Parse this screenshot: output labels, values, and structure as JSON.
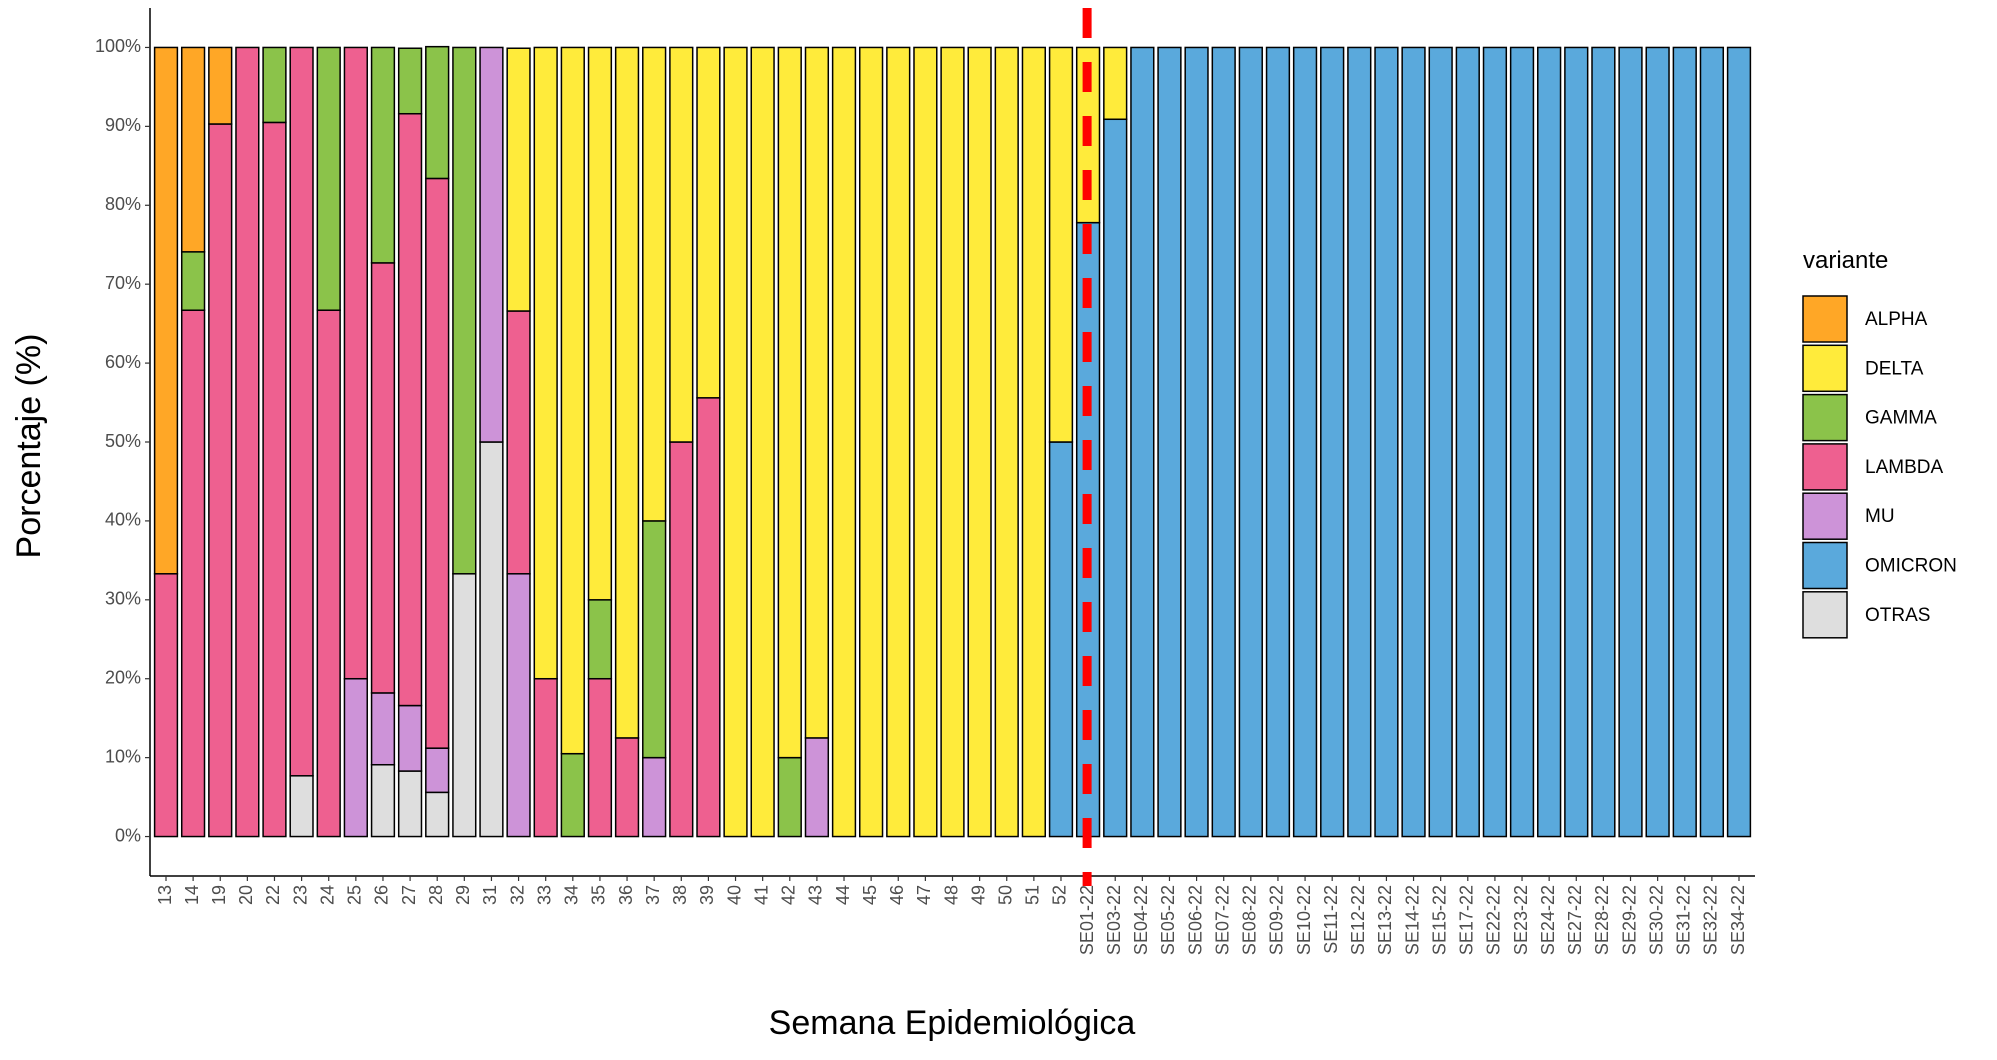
{
  "chart_data": {
    "type": "stacked_bar",
    "x_label": "Semana Epidemiológica",
    "y_label": "Porcentaje (%)",
    "legend_title": "variante",
    "legend_position": "right",
    "categories": [
      "13",
      "14",
      "19",
      "20",
      "22",
      "23",
      "24",
      "25",
      "26",
      "27",
      "28",
      "29",
      "31",
      "32",
      "33",
      "34",
      "35",
      "36",
      "37",
      "38",
      "39",
      "40",
      "41",
      "42",
      "43",
      "44",
      "45",
      "46",
      "47",
      "48",
      "49",
      "50",
      "51",
      "52",
      "SE01-22",
      "SE03-22",
      "SE04-22",
      "SE05-22",
      "SE06-22",
      "SE07-22",
      "SE08-22",
      "SE09-22",
      "SE10-22",
      "SE11-22",
      "SE12-22",
      "SE13-22",
      "SE14-22",
      "SE15-22",
      "SE17-22",
      "SE22-22",
      "SE23-22",
      "SE24-22",
      "SE27-22",
      "SE28-22",
      "SE29-22",
      "SE30-22",
      "SE31-22",
      "SE32-22",
      "SE34-22"
    ],
    "ylim": [
      -5,
      105
    ],
    "yticks": [
      {
        "value": 0,
        "label": "0%"
      },
      {
        "value": 10,
        "label": "10%"
      },
      {
        "value": 20,
        "label": "20%"
      },
      {
        "value": 30,
        "label": "30%"
      },
      {
        "value": 40,
        "label": "40%"
      },
      {
        "value": 50,
        "label": "50%"
      },
      {
        "value": 60,
        "label": "60%"
      },
      {
        "value": 70,
        "label": "70%"
      },
      {
        "value": 80,
        "label": "80%"
      },
      {
        "value": 90,
        "label": "90%"
      },
      {
        "value": 100,
        "label": "100%"
      }
    ],
    "series": [
      {
        "name": "OTRAS",
        "color": "#dedede",
        "values": [
          null,
          null,
          null,
          null,
          null,
          7.7,
          null,
          null,
          9.1,
          8.3,
          5.6,
          33.3,
          50,
          null,
          null,
          null,
          null,
          null,
          null,
          null,
          null,
          null,
          null,
          null,
          null,
          null,
          null,
          null,
          null,
          null,
          null,
          null,
          null,
          null,
          null,
          null,
          null,
          null,
          null,
          null,
          null,
          null,
          null,
          null,
          null,
          null,
          null,
          null,
          null,
          null,
          null,
          null,
          null,
          null,
          null,
          null,
          null,
          null,
          null
        ]
      },
      {
        "name": "OMICRON",
        "color": "#5aa9dc",
        "values": [
          null,
          null,
          null,
          null,
          null,
          null,
          null,
          null,
          null,
          null,
          null,
          null,
          null,
          null,
          null,
          null,
          null,
          null,
          null,
          null,
          null,
          null,
          null,
          null,
          null,
          null,
          null,
          null,
          null,
          null,
          null,
          null,
          null,
          50,
          77.8,
          90.9,
          100,
          100,
          100,
          100,
          100,
          100,
          100,
          100,
          100,
          100,
          100,
          100,
          100,
          100,
          100,
          100,
          100,
          100,
          100,
          100,
          100,
          100,
          100
        ]
      },
      {
        "name": "MU",
        "color": "#cd93d8",
        "values": [
          null,
          null,
          null,
          null,
          null,
          null,
          null,
          20,
          9.1,
          8.3,
          5.6,
          null,
          50,
          33.3,
          null,
          null,
          null,
          null,
          10,
          null,
          null,
          null,
          null,
          null,
          12.5,
          null,
          null,
          null,
          null,
          null,
          null,
          null,
          null,
          null,
          null,
          null,
          null,
          null,
          null,
          null,
          null,
          null,
          null,
          null,
          null,
          null,
          null,
          null,
          null,
          null,
          null,
          null,
          null,
          null,
          null,
          null,
          null,
          null,
          null
        ]
      },
      {
        "name": "LAMBDA",
        "color": "#ee6090",
        "values": [
          33.3,
          66.7,
          90.3,
          100,
          90.5,
          92.3,
          66.7,
          80,
          54.5,
          75,
          72.2,
          null,
          null,
          33.3,
          20,
          null,
          20,
          12.5,
          null,
          50,
          55.6,
          null,
          null,
          null,
          null,
          null,
          null,
          null,
          null,
          null,
          null,
          null,
          null,
          null,
          null,
          null,
          null,
          null,
          null,
          null,
          null,
          null,
          null,
          null,
          null,
          null,
          null,
          null,
          null,
          null,
          null,
          null,
          null,
          null,
          null,
          null,
          null,
          null,
          null
        ]
      },
      {
        "name": "GAMMA",
        "color": "#8bc34a",
        "values": [
          null,
          7.4,
          null,
          null,
          9.5,
          null,
          33.3,
          null,
          27.3,
          8.3,
          16.7,
          66.7,
          null,
          null,
          null,
          10.5,
          10,
          null,
          30,
          null,
          null,
          null,
          null,
          10,
          null,
          null,
          null,
          null,
          null,
          null,
          null,
          null,
          null,
          null,
          null,
          null,
          null,
          null,
          null,
          null,
          null,
          null,
          null,
          null,
          null,
          null,
          null,
          null,
          null,
          null,
          null,
          null,
          null,
          null,
          null,
          null,
          null,
          null,
          null
        ]
      },
      {
        "name": "DELTA",
        "color": "#ffeb3b",
        "values": [
          null,
          null,
          null,
          null,
          null,
          null,
          null,
          null,
          null,
          null,
          null,
          null,
          null,
          33.3,
          80,
          89.5,
          70,
          87.5,
          60,
          50,
          44.4,
          100,
          100,
          90,
          87.5,
          100,
          100,
          100,
          100,
          100,
          100,
          100,
          100,
          50,
          22.2,
          9.1,
          null,
          null,
          null,
          null,
          null,
          null,
          null,
          null,
          null,
          null,
          null,
          null,
          null,
          null,
          null,
          null,
          null,
          null,
          null,
          null,
          null,
          null,
          null
        ]
      },
      {
        "name": "ALPHA",
        "color": "#ffa726",
        "values": [
          66.7,
          25.9,
          9.7,
          null,
          null,
          null,
          null,
          null,
          null,
          null,
          null,
          null,
          null,
          null,
          null,
          null,
          null,
          null,
          null,
          null,
          null,
          null,
          null,
          null,
          null,
          null,
          null,
          null,
          null,
          null,
          null,
          null,
          null,
          null,
          null,
          null,
          null,
          null,
          null,
          null,
          null,
          null,
          null,
          null,
          null,
          null,
          null,
          null,
          null,
          null,
          null,
          null,
          null,
          null,
          null,
          null,
          null,
          null,
          null
        ]
      }
    ]
  }
}
